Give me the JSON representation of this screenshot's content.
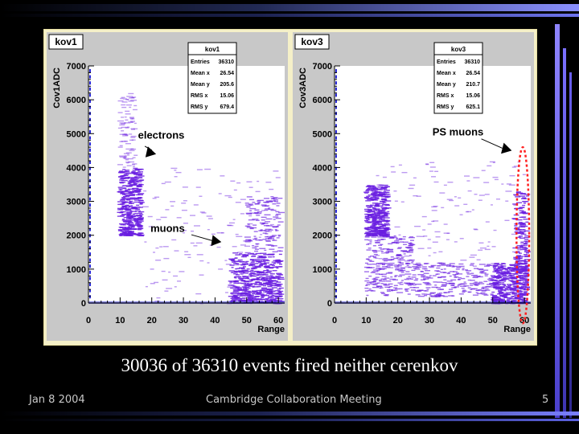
{
  "caption": "30036 of 36310 events fired neither cerenkov",
  "footer": {
    "date": "Jan 8 2004",
    "meeting": "Cambridge Collaboration Meeting",
    "page": "5"
  },
  "colors": {
    "frame": "#f5f0c8",
    "panel": "#c8c8c8",
    "plot_bg": "#ffffff",
    "points": "#6a1ee0",
    "bars_left": "#2b2bd8",
    "bars_bottom": "#3333cc",
    "ellipse": "#ff2020"
  },
  "chart_data": [
    {
      "type": "scatter",
      "title": "kov1",
      "xlabel": "Range",
      "ylabel": "Cov1ADC",
      "xlim": [
        0,
        62
      ],
      "ylim": [
        0,
        7000
      ],
      "xticks": [
        "0",
        "10",
        "20",
        "30",
        "40",
        "50",
        "60"
      ],
      "yticks": [
        "0",
        "1000",
        "2000",
        "3000",
        "4000",
        "5000",
        "6000",
        "7000"
      ],
      "stats": {
        "title": "kov1",
        "rows": [
          {
            "label": "Entries",
            "value": "36310"
          },
          {
            "label": "Mean x",
            "value": "26.54"
          },
          {
            "label": "Mean y",
            "value": "205.6"
          },
          {
            "label": "RMS x",
            "value": "15.06"
          },
          {
            "label": "RMS y",
            "value": "679.4"
          }
        ]
      },
      "annotations": [
        {
          "text": "electrons",
          "x": 23,
          "y": 4850,
          "arrow_to": [
            18,
            4300
          ]
        },
        {
          "text": "muons",
          "x": 25,
          "y": 2100,
          "arrow_to": [
            42,
            1800
          ]
        }
      ],
      "clusters": [
        {
          "x": [
            10,
            17
          ],
          "y": [
            2000,
            4000
          ],
          "n": 420,
          "weight": "dense"
        },
        {
          "x": [
            10,
            15
          ],
          "y": [
            4000,
            6200
          ],
          "n": 90,
          "weight": "sparse"
        },
        {
          "x": [
            45,
            61
          ],
          "y": [
            0,
            1500
          ],
          "n": 520,
          "weight": "dense"
        },
        {
          "x": [
            50,
            61
          ],
          "y": [
            1500,
            3200
          ],
          "n": 140,
          "weight": "mid"
        },
        {
          "x": [
            17,
            60
          ],
          "y": [
            0,
            4000
          ],
          "n": 150,
          "weight": "sparse"
        }
      ],
      "ellipse": null
    },
    {
      "type": "scatter",
      "title": "kov3",
      "xlabel": "Range",
      "ylabel": "Cov3ADC",
      "xlim": [
        0,
        62
      ],
      "ylim": [
        0,
        7000
      ],
      "xticks": [
        "0",
        "10",
        "20",
        "30",
        "40",
        "50",
        "60"
      ],
      "yticks": [
        "0",
        "1000",
        "2000",
        "3000",
        "4000",
        "5000",
        "6000",
        "7000"
      ],
      "stats": {
        "title": "kov3",
        "rows": [
          {
            "label": "Entries",
            "value": "36310"
          },
          {
            "label": "Mean x",
            "value": "26.54"
          },
          {
            "label": "Mean y",
            "value": "210.7"
          },
          {
            "label": "RMS x",
            "value": "15.06"
          },
          {
            "label": "RMS y",
            "value": "625.1"
          }
        ]
      },
      "annotations": [
        {
          "text": "PS muons",
          "x": 39,
          "y": 4950,
          "arrow_to": [
            56,
            4500
          ]
        }
      ],
      "clusters": [
        {
          "x": [
            10,
            17
          ],
          "y": [
            2000,
            3500
          ],
          "n": 380,
          "weight": "dense"
        },
        {
          "x": [
            10,
            25
          ],
          "y": [
            200,
            2000
          ],
          "n": 260,
          "weight": "mid"
        },
        {
          "x": [
            25,
            50
          ],
          "y": [
            200,
            1200
          ],
          "n": 230,
          "weight": "mid"
        },
        {
          "x": [
            50,
            61
          ],
          "y": [
            0,
            1200
          ],
          "n": 420,
          "weight": "dense"
        },
        {
          "x": [
            57,
            61
          ],
          "y": [
            1000,
            3300
          ],
          "n": 160,
          "weight": "dense"
        },
        {
          "x": [
            12,
            60
          ],
          "y": [
            1000,
            4200
          ],
          "n": 150,
          "weight": "sparse"
        }
      ],
      "ellipse": {
        "cx": 59.5,
        "cy": 2000,
        "rx": 2,
        "ry": 2600
      }
    }
  ]
}
